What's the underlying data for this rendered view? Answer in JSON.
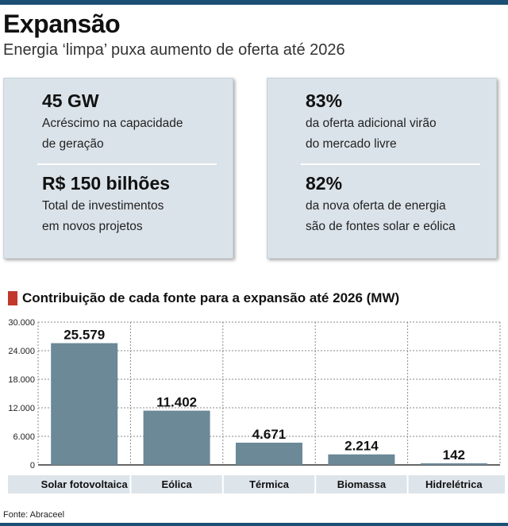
{
  "header": {
    "title": "Expansão",
    "subtitle": "Energia ‘limpa’ puxa aumento de oferta até 2026"
  },
  "cards": {
    "left": {
      "stat1": {
        "value": "45 GW",
        "line1": "Acréscimo na capacidade",
        "line2": "de geração"
      },
      "stat2": {
        "value": "R$ 150 bilhões",
        "line1": "Total de investimentos",
        "line2": "em novos projetos"
      }
    },
    "right": {
      "stat1": {
        "value": "83%",
        "line1": "da oferta adicional virão",
        "line2": "do mercado livre"
      },
      "stat2": {
        "value": "82%",
        "line1": "da nova oferta de energia",
        "line2": "são de fontes solar e eólica"
      }
    }
  },
  "colors": {
    "bar": "#6b8997",
    "marker": "#c0392b",
    "card_bg": "#dbe3ea",
    "rule": "#1b4f73",
    "label_band": "#dde4ea"
  },
  "chart_data": {
    "type": "bar",
    "title": "Contribuição de cada fonte para a expansão até 2026 (MW)",
    "categories": [
      "Solar fotovoltaica",
      "Eólica",
      "Térmica",
      "Biomassa",
      "Hidrelétrica"
    ],
    "values": [
      25579,
      11402,
      4671,
      2214,
      142
    ],
    "value_labels": [
      "25.579",
      "11.402",
      "4.671",
      "2.214",
      "142"
    ],
    "ylim": [
      0,
      30000
    ],
    "yticks": [
      0,
      6000,
      12000,
      18000,
      24000,
      30000
    ],
    "ytick_labels": [
      "0",
      "6.000",
      "12.000",
      "18.000",
      "24.000",
      "30.000"
    ],
    "grid": true,
    "xlabel": "",
    "ylabel": ""
  },
  "footer": {
    "source": "Fonte: Abraceel"
  }
}
